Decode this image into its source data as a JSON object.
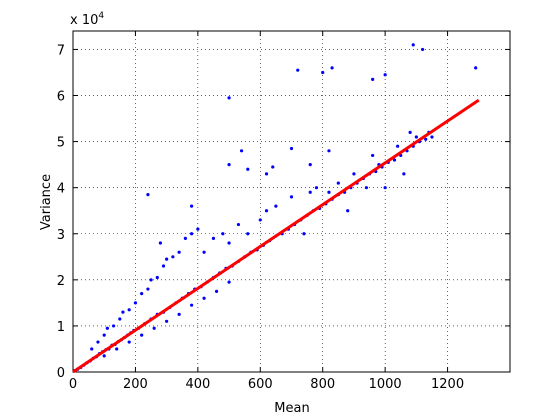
{
  "chart_data": {
    "type": "scatter",
    "xlabel": "Mean",
    "ylabel": "Variance",
    "multiplier": "x 10",
    "multiplier_exponent": "4",
    "xlim": [
      0,
      1400
    ],
    "ylim": [
      0,
      7.4
    ],
    "xticks": [
      0,
      200,
      400,
      600,
      800,
      1000,
      1200
    ],
    "yticks": [
      0,
      1,
      2,
      3,
      4,
      5,
      6,
      7
    ],
    "grid": true,
    "x": [
      5,
      15,
      25,
      35,
      45,
      55,
      65,
      75,
      85,
      95,
      105,
      115,
      125,
      135,
      145,
      155,
      165,
      175,
      185,
      195,
      60,
      80,
      100,
      110,
      130,
      150,
      160,
      180,
      200,
      220,
      240,
      250,
      270,
      290,
      300,
      320,
      340,
      360,
      380,
      400,
      100,
      140,
      180,
      220,
      260,
      300,
      340,
      380,
      420,
      460,
      500,
      210,
      230,
      250,
      270,
      290,
      310,
      330,
      350,
      370,
      390,
      410,
      430,
      450,
      470,
      490,
      510,
      530,
      550,
      570,
      590,
      610,
      630,
      650,
      670,
      690,
      710,
      730,
      750,
      770,
      790,
      810,
      830,
      850,
      870,
      890,
      910,
      930,
      950,
      970,
      990,
      1010,
      1030,
      1050,
      1070,
      1090,
      1110,
      1130,
      1150,
      420,
      450,
      480,
      500,
      530,
      560,
      600,
      620,
      650,
      700,
      740,
      760,
      780,
      820,
      850,
      880,
      900,
      940,
      980,
      1000,
      1040,
      1060,
      1100,
      1140,
      1080,
      960,
      240,
      380,
      280,
      500,
      540,
      560,
      640,
      760,
      820,
      500,
      720,
      800,
      830,
      960,
      1000,
      1090,
      1120,
      1290,
      700,
      620
    ],
    "series": [
      {
        "color": "#0000ff",
        "values": [
          0.03,
          0.06,
          0.1,
          0.15,
          0.2,
          0.24,
          0.3,
          0.33,
          0.4,
          0.44,
          0.48,
          0.5,
          0.58,
          0.6,
          0.66,
          0.7,
          0.75,
          0.8,
          0.85,
          0.9,
          0.5,
          0.65,
          0.8,
          0.95,
          1.0,
          1.15,
          1.3,
          1.35,
          1.5,
          1.7,
          1.8,
          2.0,
          2.05,
          2.3,
          2.45,
          2.5,
          2.6,
          2.9,
          3.0,
          3.1,
          0.35,
          0.5,
          0.65,
          0.8,
          0.95,
          1.1,
          1.25,
          1.45,
          1.6,
          1.75,
          1.95,
          0.95,
          1.05,
          1.15,
          1.25,
          1.3,
          1.4,
          1.5,
          1.6,
          1.7,
          1.8,
          1.85,
          1.95,
          2.05,
          2.15,
          2.25,
          2.3,
          2.4,
          2.5,
          2.6,
          2.65,
          2.75,
          2.85,
          2.95,
          3.0,
          3.1,
          3.2,
          3.3,
          3.4,
          3.5,
          3.55,
          3.65,
          3.75,
          3.85,
          3.9,
          4.0,
          4.1,
          4.2,
          4.3,
          4.35,
          4.45,
          4.55,
          4.6,
          4.7,
          4.8,
          4.9,
          5.0,
          5.05,
          5.1,
          2.6,
          2.9,
          3.0,
          2.8,
          3.2,
          3.0,
          3.3,
          3.5,
          3.6,
          3.8,
          3.0,
          3.9,
          4.0,
          3.9,
          4.1,
          3.5,
          4.3,
          4.0,
          4.5,
          4.0,
          4.9,
          4.3,
          5.1,
          5.2,
          5.2,
          4.7,
          3.85,
          3.6,
          2.8,
          4.5,
          4.8,
          4.4,
          4.45,
          4.5,
          4.8,
          5.95,
          6.55,
          6.5,
          6.6,
          6.35,
          6.45,
          7.1,
          7.0,
          6.6,
          4.85,
          4.3
        ]
      }
    ],
    "fit": {
      "color": "#ff0000",
      "x": [
        0,
        1300
      ],
      "values": [
        0,
        5.9
      ]
    }
  }
}
